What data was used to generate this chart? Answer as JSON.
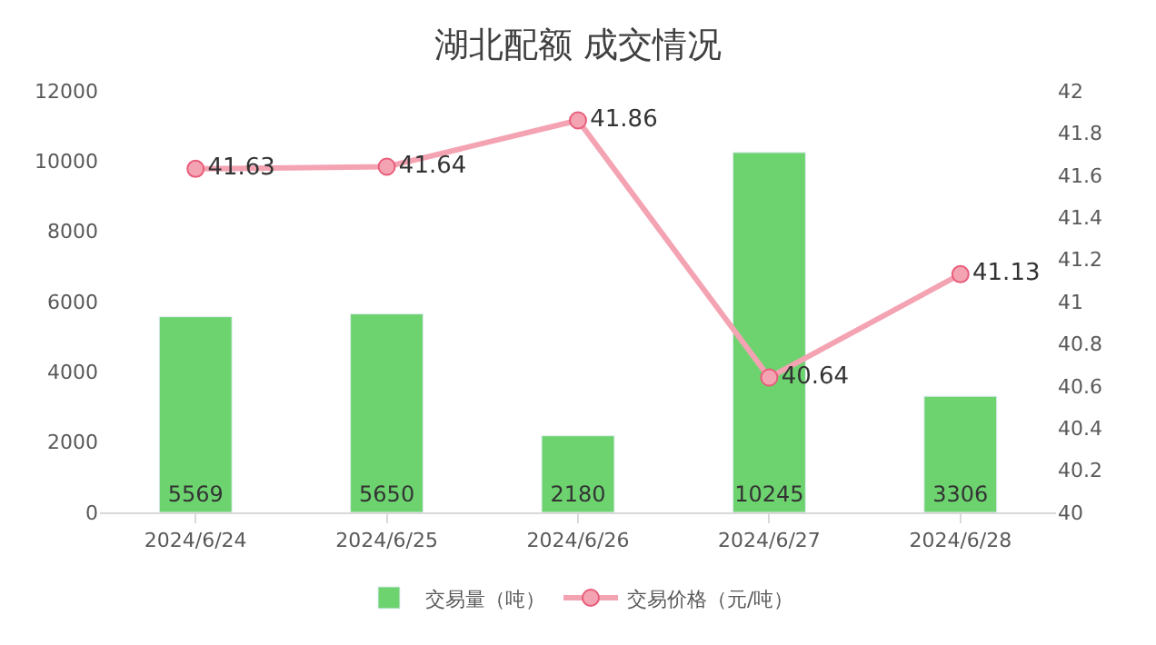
{
  "chart_data": {
    "type": "bar",
    "title": "湖北配额 成交情况",
    "categories": [
      "2024/6/24",
      "2024/6/25",
      "2024/6/26",
      "2024/6/27",
      "2024/6/28"
    ],
    "series": [
      {
        "name": "交易量（吨）",
        "color": "#6dd36f",
        "values": [
          5569,
          5650,
          2180,
          10245,
          3306
        ]
      },
      {
        "name": "交易价格（元/吨）",
        "type": "line",
        "axis": "y2",
        "color": "#f4a3b3",
        "marker": "circle",
        "values": [
          41.63,
          41.64,
          41.86,
          40.64,
          41.13
        ]
      }
    ],
    "ylim": [
      0,
      12000
    ],
    "yticks": [
      0,
      2000,
      4000,
      6000,
      8000,
      10000,
      12000
    ],
    "y2lim": [
      40,
      42
    ],
    "y2ticks": [
      40,
      {
        "value": 40.2,
        "label": "40.2"
      },
      40.4,
      40.6,
      40.8,
      41,
      41.2,
      41.4,
      41.6,
      41.8,
      42
    ],
    "data_labels": true,
    "legend": "bottom"
  }
}
